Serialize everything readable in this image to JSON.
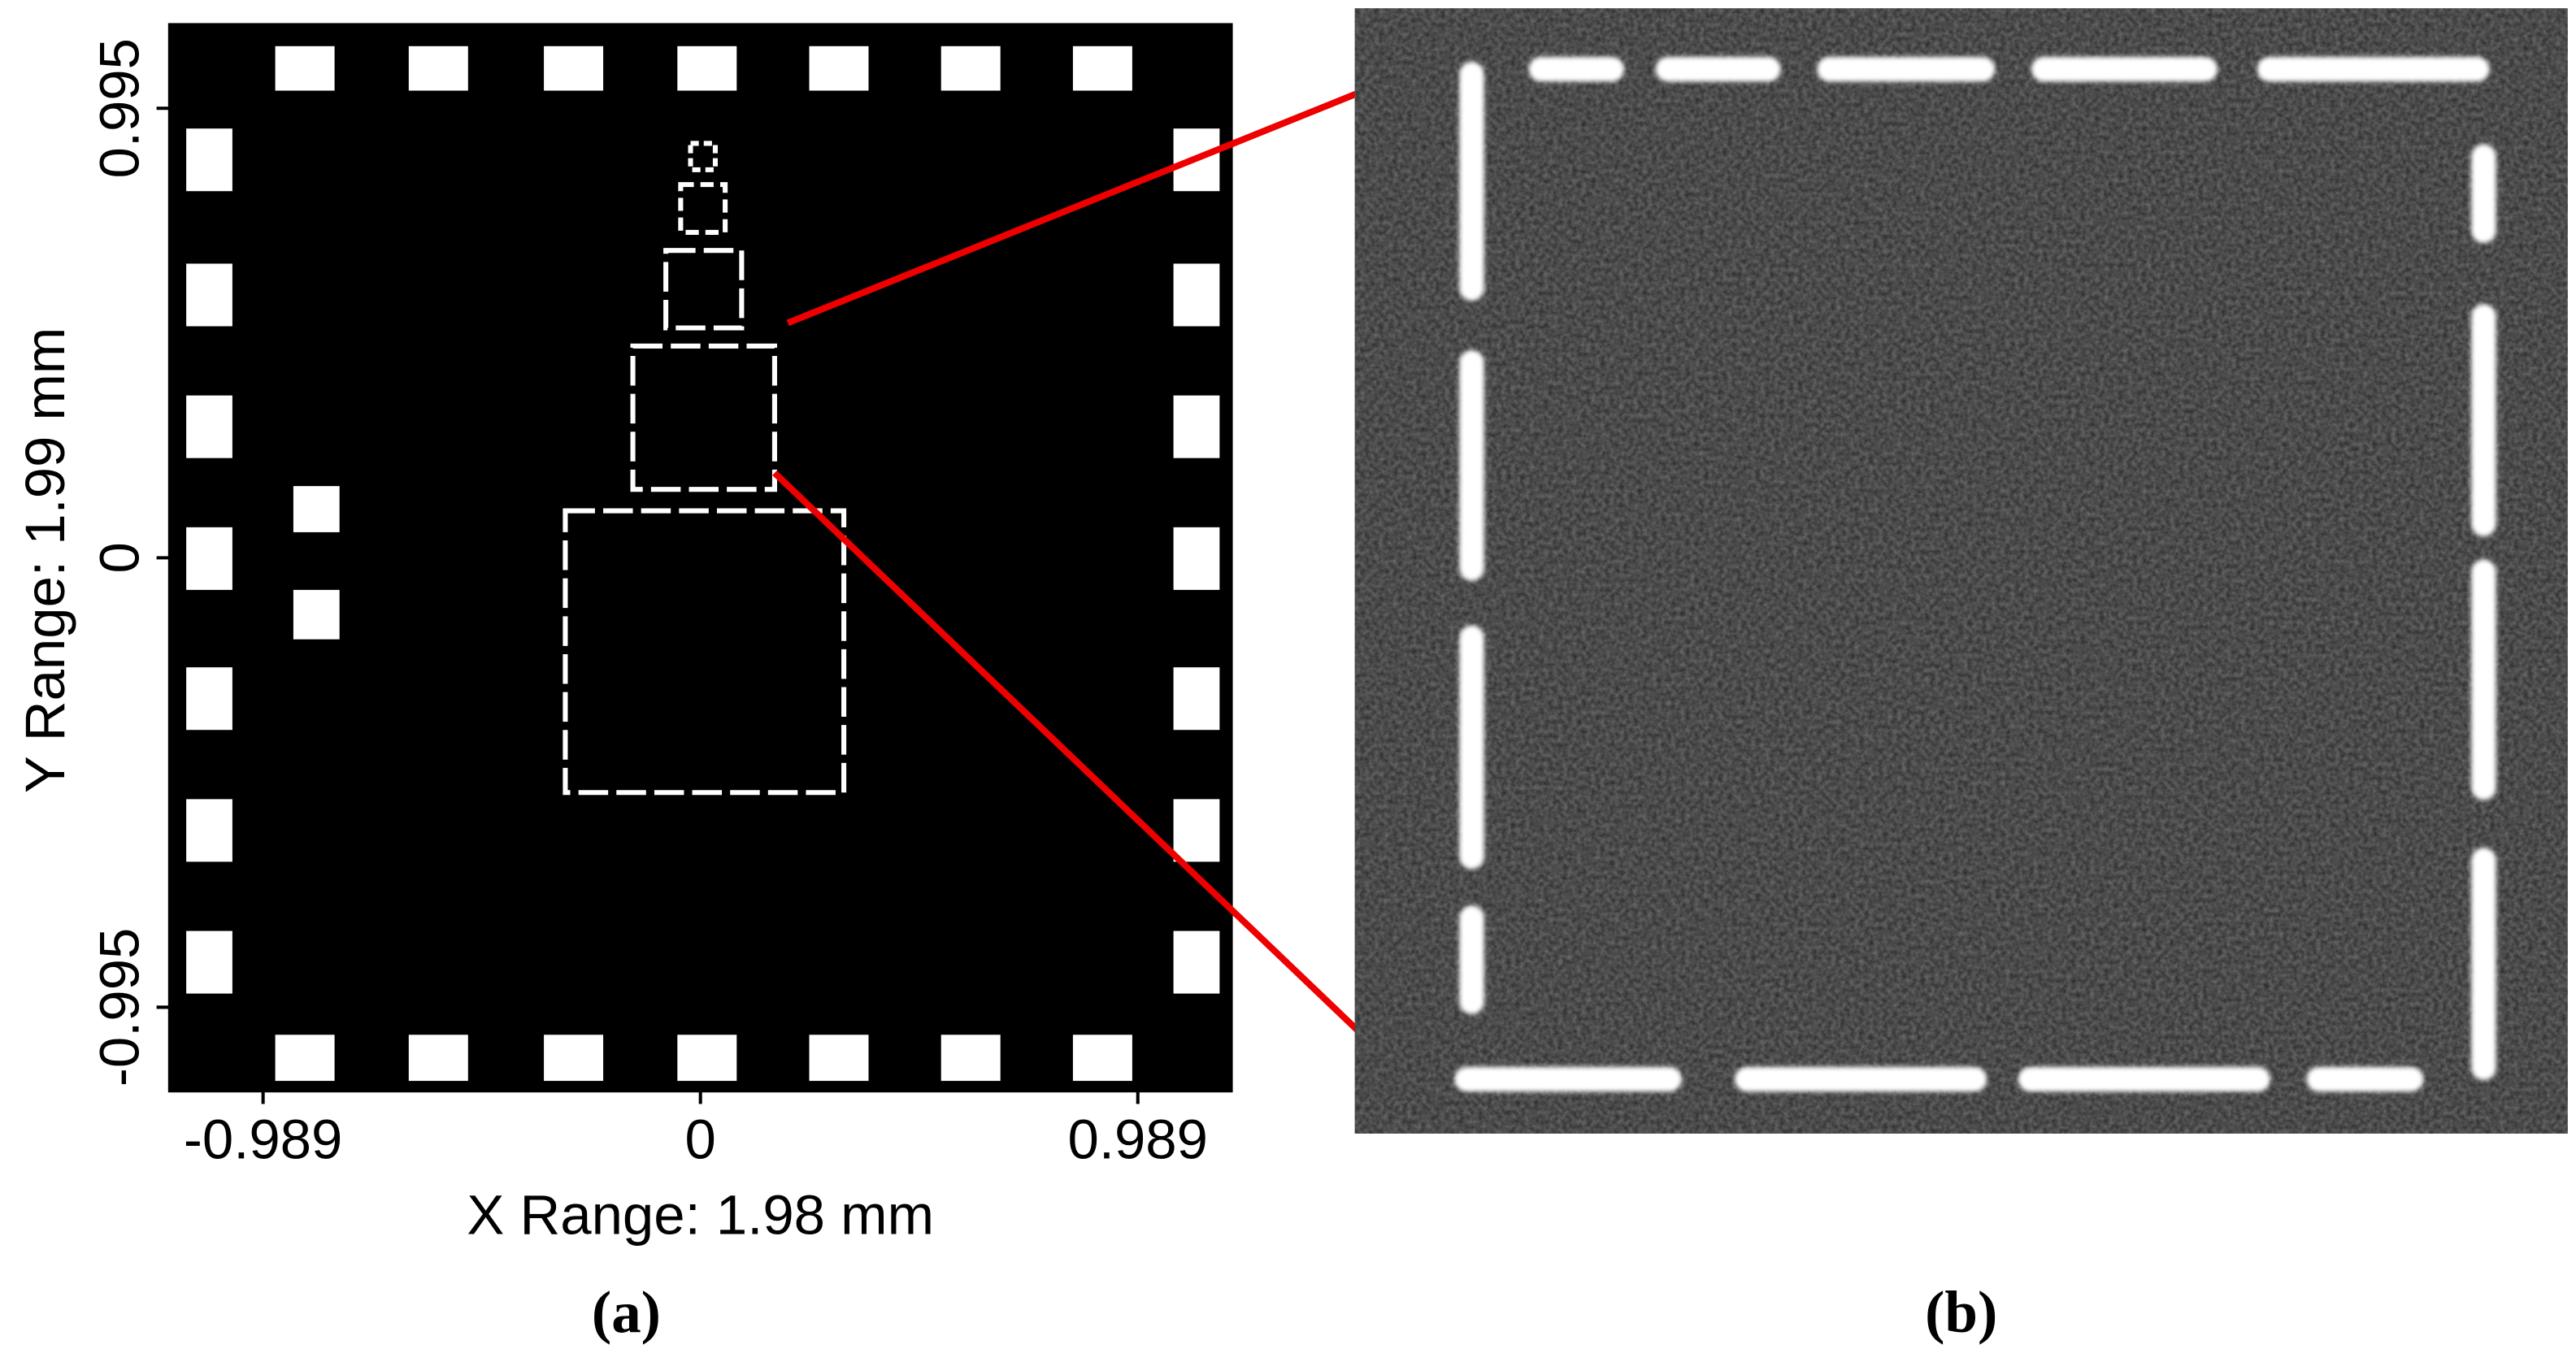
{
  "panel_a": {
    "label": "(a)",
    "x_axis": {
      "label": "X Range:  1.98 mm",
      "lim": [
        -1.2,
        1.2
      ],
      "ticks": [
        -0.989,
        0,
        0.989
      ]
    },
    "y_axis": {
      "label": "Y Range:  1.99 mm",
      "lim": [
        -1.18,
        1.18
      ],
      "ticks": [
        -0.995,
        0,
        0.995
      ]
    }
  },
  "panel_b": {
    "label": "(b)"
  }
}
